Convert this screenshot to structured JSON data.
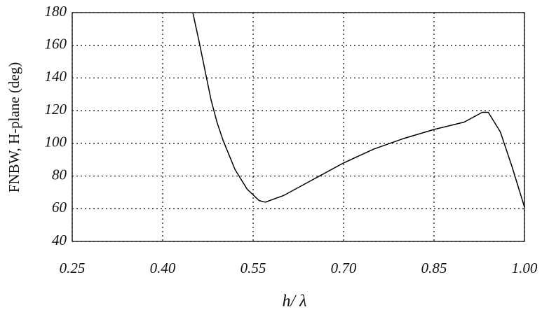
{
  "chart_data": {
    "type": "line",
    "x_label": "h/ λ",
    "y_label": "FNBW, H-plane (deg)",
    "x": [
      0.45,
      0.46,
      0.47,
      0.48,
      0.49,
      0.5,
      0.52,
      0.54,
      0.56,
      0.57,
      0.6,
      0.65,
      0.7,
      0.75,
      0.8,
      0.85,
      0.9,
      0.93,
      0.94,
      0.96,
      0.98,
      1.0
    ],
    "values": [
      180,
      163,
      145,
      127,
      113,
      102,
      84,
      72,
      65,
      64,
      68,
      78,
      88,
      96.5,
      103,
      108.5,
      113,
      119,
      119,
      107,
      85,
      61
    ],
    "color": "#000000",
    "xlim": [
      0.25,
      1.0
    ],
    "xticks": [
      0.25,
      {
        "value": 0.4,
        "label": "0.40"
      },
      0.55,
      {
        "value": 0.7,
        "label": "0.70"
      },
      0.85,
      {
        "value": 1.0,
        "label": "1.00"
      }
    ],
    "ylim": [
      40,
      180
    ],
    "yticks": [
      40,
      60,
      80,
      100,
      120,
      140,
      160,
      180
    ],
    "grid": true
  }
}
